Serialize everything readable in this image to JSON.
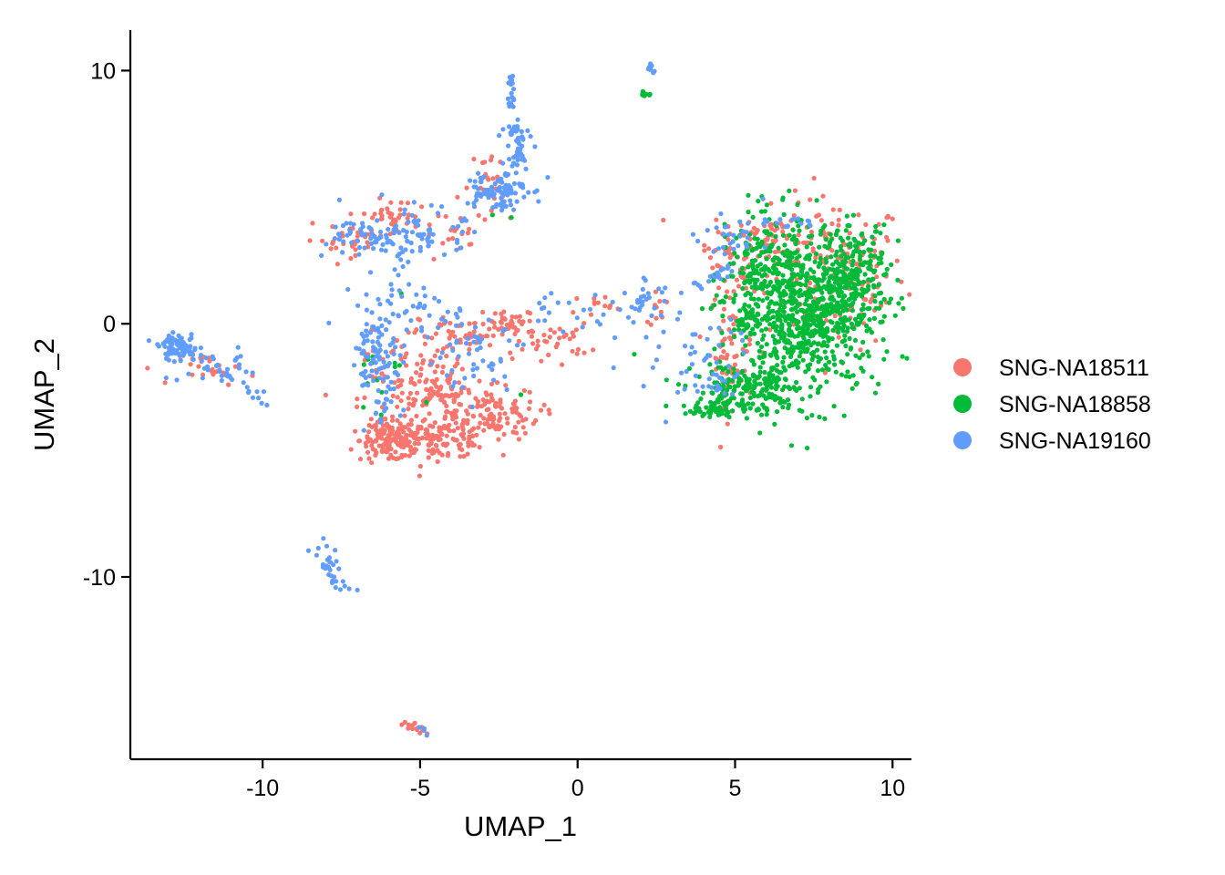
{
  "chart_data": {
    "type": "scatter",
    "title": "",
    "xlabel": "UMAP_1",
    "ylabel": "UMAP_2",
    "xlim": [
      -14.2,
      10.6
    ],
    "ylim": [
      -17.2,
      11.6
    ],
    "x_ticks": [
      -10,
      -5,
      0,
      5,
      10
    ],
    "y_ticks": [
      10,
      0,
      -10
    ],
    "x_tick_labels": [
      "-10",
      "-5",
      "0",
      "5",
      "10"
    ],
    "y_tick_labels": [
      "10",
      "0",
      "-10"
    ],
    "grid": false,
    "legend_position": "right",
    "series": [
      {
        "name": "SNG-NA18511",
        "color": "#F8766D",
        "clusters": [
          {
            "x": 8.2,
            "y": 2.0,
            "sx": 1.1,
            "sy": 1.5,
            "n": 150
          },
          {
            "x": 6.2,
            "y": 3.4,
            "sx": 1.0,
            "sy": 0.6,
            "n": 70
          },
          {
            "x": 4.9,
            "y": -0.8,
            "sx": 0.35,
            "sy": 1.2,
            "n": 70
          },
          {
            "x": -6.0,
            "y": -4.6,
            "sx": 0.45,
            "sy": 0.4,
            "n": 130
          },
          {
            "x": -4.5,
            "y": -4.6,
            "sx": 0.9,
            "sy": 0.35,
            "n": 130
          },
          {
            "x": -4.5,
            "y": -3.0,
            "sx": 1.2,
            "sy": 0.8,
            "n": 140
          },
          {
            "x": -2.8,
            "y": -3.6,
            "sx": 0.8,
            "sy": 0.5,
            "n": 90
          },
          {
            "x": -5.2,
            "y": -1.4,
            "sx": 0.8,
            "sy": 0.6,
            "n": 50
          },
          {
            "x": -3.6,
            "y": -0.4,
            "sx": 0.7,
            "sy": 0.4,
            "n": 45
          },
          {
            "x": -2.0,
            "y": 0.0,
            "sx": 0.5,
            "sy": 0.25,
            "n": 35
          },
          {
            "x": -0.8,
            "y": -0.7,
            "sx": 0.6,
            "sy": 0.35,
            "n": 35
          },
          {
            "x": -6.0,
            "y": 4.2,
            "sx": 0.4,
            "sy": 0.35,
            "n": 40
          },
          {
            "x": -7.3,
            "y": 3.3,
            "sx": 0.7,
            "sy": 0.3,
            "n": 30
          },
          {
            "x": -4.3,
            "y": 3.6,
            "sx": 0.5,
            "sy": 0.4,
            "n": 20
          },
          {
            "x": -2.7,
            "y": 5.4,
            "sx": 0.5,
            "sy": 0.8,
            "n": 25
          },
          {
            "x": -11.4,
            "y": -1.8,
            "sx": 0.6,
            "sy": 0.3,
            "n": 25
          },
          {
            "x": 0.5,
            "y": 0.8,
            "sx": 0.3,
            "sy": 0.2,
            "n": 12
          },
          {
            "x": 2.6,
            "y": 0.6,
            "sx": 0.3,
            "sy": 0.3,
            "n": 10
          },
          {
            "x": 4.9,
            "y": 2.4,
            "sx": 0.5,
            "sy": 0.6,
            "n": 30
          }
        ],
        "segments": [
          {
            "x1": -5.5,
            "y1": -15.6,
            "x2": -4.9,
            "y2": -16.2,
            "n": 14
          }
        ]
      },
      {
        "name": "SNG-NA18858",
        "color": "#00BA38",
        "clusters": [
          {
            "x": 7.2,
            "y": 0.5,
            "sx": 1.2,
            "sy": 1.6,
            "n": 820
          },
          {
            "x": 8.8,
            "y": 1.8,
            "sx": 0.5,
            "sy": 1.0,
            "n": 160
          },
          {
            "x": 5.5,
            "y": -2.6,
            "sx": 0.9,
            "sy": 0.5,
            "n": 160
          },
          {
            "x": 5.8,
            "y": 1.8,
            "sx": 0.5,
            "sy": 1.1,
            "n": 120
          },
          {
            "x": 4.5,
            "y": -3.3,
            "sx": 0.55,
            "sy": 0.2,
            "n": 70
          },
          {
            "x": 2.2,
            "y": 9.1,
            "sx": 0.08,
            "sy": 0.06,
            "n": 8
          },
          {
            "x": -6.3,
            "y": -2.0,
            "sx": 0.4,
            "sy": 0.8,
            "n": 12
          }
        ],
        "points": [
          [
            -5.6,
            1.2
          ],
          [
            -3.6,
            4.1
          ],
          [
            -2.7,
            4.3
          ],
          [
            -6.8,
            -3.3
          ],
          [
            -4.8,
            -3.1
          ],
          [
            -1.8,
            -2.8
          ],
          [
            1.8,
            -1.2
          ],
          [
            -5.8,
            -1.7
          ],
          [
            -6.5,
            -1.3
          ],
          [
            -2.1,
            4.2
          ]
        ]
      },
      {
        "name": "SNG-NA19160",
        "color": "#619CFF",
        "clusters": [
          {
            "x": -12.7,
            "y": -0.9,
            "sx": 0.3,
            "sy": 0.2,
            "n": 70
          },
          {
            "x": -11.5,
            "y": -1.8,
            "sx": 0.8,
            "sy": 0.35,
            "n": 30
          },
          {
            "x": -6.5,
            "y": -1.0,
            "sx": 0.4,
            "sy": 0.6,
            "n": 50
          },
          {
            "x": -5.4,
            "y": 0.6,
            "sx": 0.8,
            "sy": 0.6,
            "n": 40
          },
          {
            "x": -6.3,
            "y": -2.6,
            "sx": 0.35,
            "sy": 0.8,
            "n": 40
          },
          {
            "x": -3.4,
            "y": -1.0,
            "sx": 0.9,
            "sy": 0.8,
            "n": 60
          },
          {
            "x": -2.6,
            "y": 5.3,
            "sx": 0.5,
            "sy": 0.4,
            "n": 90
          },
          {
            "x": -2.0,
            "y": 7.0,
            "sx": 0.25,
            "sy": 0.7,
            "n": 50
          },
          {
            "x": -2.1,
            "y": 9.3,
            "sx": 0.06,
            "sy": 0.4,
            "n": 18
          },
          {
            "x": -6.3,
            "y": 3.4,
            "sx": 0.8,
            "sy": 0.5,
            "n": 70
          },
          {
            "x": -4.8,
            "y": 3.5,
            "sx": 0.6,
            "sy": 0.5,
            "n": 50
          },
          {
            "x": -5.9,
            "y": 1.7,
            "sx": 0.15,
            "sy": 0.5,
            "n": 8
          },
          {
            "x": 2.2,
            "y": 0.9,
            "sx": 0.5,
            "sy": 0.4,
            "n": 30
          },
          {
            "x": 3.5,
            "y": -1.2,
            "sx": 1.0,
            "sy": 1.1,
            "n": 35
          },
          {
            "x": 5.0,
            "y": 3.3,
            "sx": 0.6,
            "sy": 0.6,
            "n": 30
          },
          {
            "x": 6.6,
            "y": 4.0,
            "sx": 0.6,
            "sy": 0.15,
            "n": 15
          },
          {
            "x": -0.5,
            "y": 0.5,
            "sx": 0.8,
            "sy": 0.4,
            "n": 20
          },
          {
            "x": 2.3,
            "y": 10.1,
            "sx": 0.12,
            "sy": 0.08,
            "n": 8
          },
          {
            "x": 4.4,
            "y": -2.2,
            "sx": 0.4,
            "sy": 0.6,
            "n": 20
          }
        ],
        "segments": [
          {
            "x1": -13.0,
            "y1": -0.6,
            "x2": -9.8,
            "y2": -3.1,
            "n": 30
          },
          {
            "x1": -8.4,
            "y1": -8.8,
            "x2": -7.4,
            "y2": -10.6,
            "n": 22
          },
          {
            "x1": -7.9,
            "y1": -8.6,
            "x2": -7.5,
            "y2": -10.4,
            "n": 10
          },
          {
            "x1": 3.0,
            "y1": 1.2,
            "x2": 5.0,
            "y2": 2.2,
            "n": 20
          },
          {
            "x1": -5.0,
            "y1": -16.0,
            "x2": -4.8,
            "y2": -16.3,
            "n": 4
          }
        ]
      }
    ]
  }
}
